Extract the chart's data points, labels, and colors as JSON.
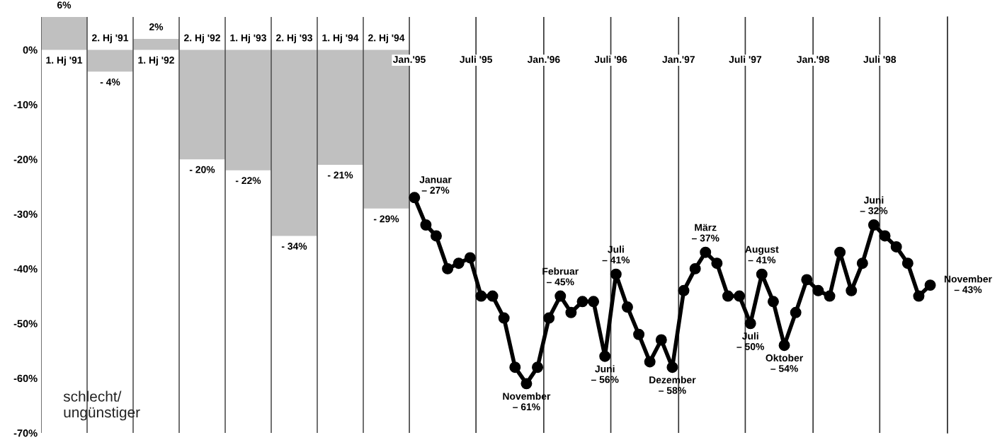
{
  "chart_data": [
    {
      "type": "bar",
      "categories": [
        "1. Hj '91",
        "2. Hj '91",
        "1. Hj '92",
        "2. Hj '92",
        "1. Hj '93",
        "2. Hj '93",
        "1. Hj '94",
        "2. Hj '94"
      ],
      "values": [
        6,
        -4,
        2,
        -20,
        -22,
        -34,
        -21,
        -29
      ],
      "value_labels": [
        "6%",
        "- 4%",
        "2%",
        "- 20%",
        "- 22%",
        "- 34%",
        "- 21%",
        "- 29%"
      ],
      "color": "#c0c0c0",
      "ylim": [
        -70,
        6
      ],
      "yticks": [
        {
          "value": 0,
          "label": "0%"
        },
        {
          "value": -10,
          "label": "-10%"
        },
        {
          "value": -20,
          "label": "-20%"
        },
        {
          "value": -30,
          "label": "-30%"
        },
        {
          "value": -40,
          "label": "-40%"
        },
        {
          "value": -50,
          "label": "-50%"
        },
        {
          "value": -60,
          "label": "-60%"
        },
        {
          "value": -70,
          "label": "-70%"
        }
      ],
      "grid": "x",
      "annotations": [
        "schlecht/\nungünstiger"
      ]
    },
    {
      "type": "line",
      "color": "#000000",
      "marker": "circle",
      "line_style": "solid",
      "grid": "x",
      "tick_labels": "x",
      "x": [
        "1995-01-15",
        "1995-02-15",
        "1995-03-15",
        "1995-04-15",
        "1995-05-15",
        "1995-06-15",
        "1995-07-15",
        "1995-08-15",
        "1995-09-15",
        "1995-10-15",
        "1995-11-15",
        "1995-12-15",
        "1996-01-15",
        "1996-02-15",
        "1996-03-15",
        "1996-04-15",
        "1996-05-15",
        "1996-06-15",
        "1996-07-15",
        "1996-08-15",
        "1996-09-15",
        "1996-10-15",
        "1996-11-15",
        "1996-12-15",
        "1997-01-15",
        "1997-02-15",
        "1997-03-15",
        "1997-04-15",
        "1997-05-15",
        "1997-06-15",
        "1997-07-15",
        "1997-08-15",
        "1997-09-15",
        "1997-10-15",
        "1997-11-15",
        "1997-12-15",
        "1998-01-15",
        "1998-02-15",
        "1998-03-15",
        "1998-04-15",
        "1998-05-15",
        "1998-06-15",
        "1998-07-15",
        "1998-08-15",
        "1998-09-15",
        "1998-10-15",
        "1998-11-15"
      ],
      "values": [
        -27,
        -32,
        -34,
        -40,
        -39,
        -38,
        -45,
        -45,
        -49,
        -58,
        -61,
        -58,
        -49,
        -45,
        -48,
        -46,
        -46,
        -56,
        -41,
        -47,
        -52,
        -57,
        -53,
        -58,
        -44,
        -40,
        -37,
        -39,
        -45,
        -45,
        -50,
        -41,
        -46,
        -54,
        -48,
        -42,
        -44,
        -45,
        -37,
        -44,
        -39,
        -32,
        -34,
        -36,
        -39,
        -45,
        -43
      ],
      "value_labels": [
        "Januar\n– 27%",
        null,
        null,
        null,
        null,
        null,
        null,
        null,
        null,
        null,
        "November\n– 61%",
        null,
        null,
        "Februar\n– 45%",
        null,
        null,
        null,
        "Juni\n– 56%",
        "Juli\n– 41%",
        null,
        null,
        null,
        null,
        "Dezember\n– 58%",
        null,
        null,
        "März\n– 37%",
        null,
        null,
        null,
        "Juli\n– 50%",
        "August\n– 41%",
        null,
        "Oktober\n– 54%",
        null,
        null,
        null,
        null,
        null,
        null,
        null,
        "Juni\n– 32%",
        null,
        null,
        null,
        null,
        "November\n– 43%"
      ],
      "ylim": [
        -70,
        6
      ],
      "xlim": [
        "1995-01",
        "1999-01"
      ],
      "xticks": [
        {
          "value": "1995-01",
          "label": "Jan.'95"
        },
        {
          "value": "1995-07",
          "label": "Juli '95"
        },
        {
          "value": "1996-01",
          "label": "Jan.'96"
        },
        {
          "value": "1996-07",
          "label": "Juli '96"
        },
        {
          "value": "1997-01",
          "label": "Jan.'97"
        },
        {
          "value": "1997-07",
          "label": "Juli '97"
        },
        {
          "value": "1998-01",
          "label": "Jan.'98"
        },
        {
          "value": "1998-07",
          "label": "Juli '98"
        },
        {
          "value": "1999-01",
          "label": null
        }
      ]
    }
  ]
}
